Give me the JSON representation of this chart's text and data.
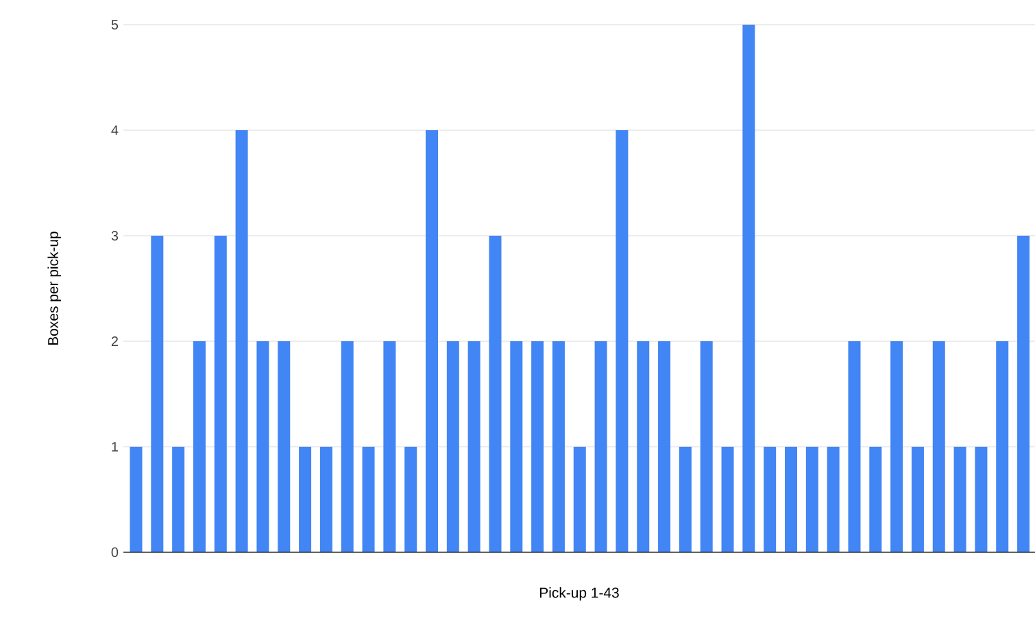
{
  "chart_data": {
    "type": "bar",
    "xlabel": "Pick-up 1-43",
    "ylabel": "Boxes per pick-up",
    "categories": [
      null,
      null,
      null,
      null,
      null,
      null,
      null,
      null,
      null,
      null,
      null,
      null,
      null,
      null,
      null,
      null,
      null,
      null,
      null,
      null,
      null,
      null,
      null,
      null,
      null,
      null,
      null,
      null,
      null,
      null,
      null,
      null,
      null,
      null,
      null,
      null,
      null,
      null,
      null,
      null,
      null,
      null,
      null
    ],
    "values": [
      1,
      3,
      1,
      2,
      3,
      4,
      2,
      2,
      1,
      1,
      2,
      1,
      2,
      1,
      4,
      2,
      2,
      3,
      2,
      2,
      2,
      1,
      2,
      4,
      2,
      2,
      1,
      2,
      1,
      5,
      1,
      1,
      1,
      1,
      2,
      1,
      2,
      1,
      2,
      1,
      1,
      2,
      3
    ],
    "color": "#4285f4",
    "ylim": [
      0,
      5
    ],
    "yticks": [
      0,
      1,
      2,
      3,
      4,
      5
    ],
    "grid": "y"
  }
}
